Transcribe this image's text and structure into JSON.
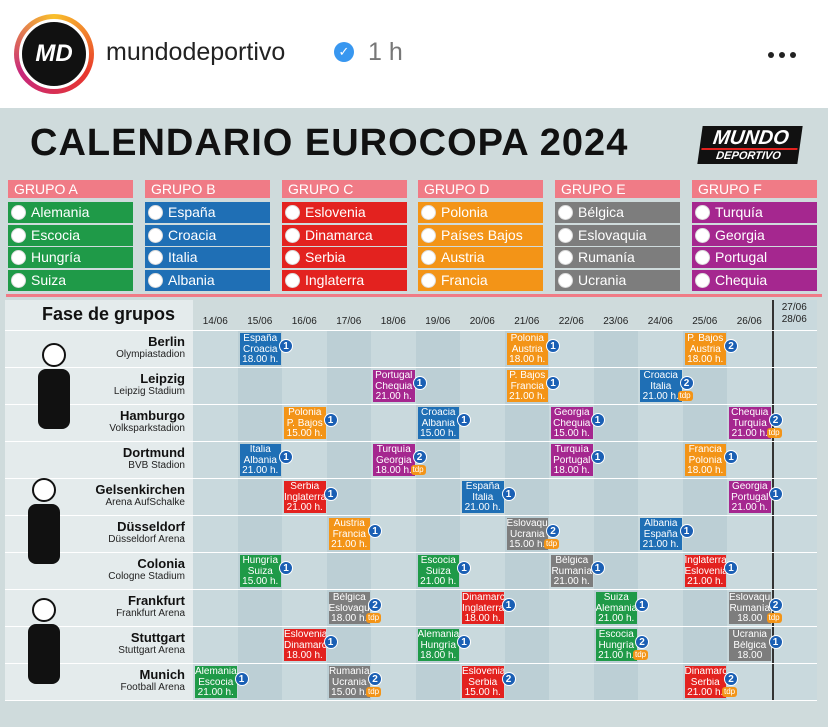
{
  "post": {
    "avatar": "MD",
    "username": "mundodeportivo",
    "time": "1 h"
  },
  "infographic": {
    "title": "CALENDARIO EUROCOPA 2024",
    "brand": [
      "MUNDO",
      "DEPORTIVO"
    ],
    "tdp_label": "tdp",
    "groups": [
      {
        "name": "GRUPO A",
        "color": "#1f9a48",
        "teams": [
          "Alemania",
          "Escocia",
          "Hungría",
          "Suiza"
        ]
      },
      {
        "name": "GRUPO B",
        "color": "#1f6fb5",
        "teams": [
          "España",
          "Croacia",
          "Italia",
          "Albania"
        ]
      },
      {
        "name": "GRUPO C",
        "color": "#e3221f",
        "teams": [
          "Eslovenia",
          "Dinamarca",
          "Serbia",
          "Inglaterra"
        ]
      },
      {
        "name": "GRUPO D",
        "color": "#f39417",
        "teams": [
          "Polonia",
          "Países Bajos",
          "Austria",
          "Francia"
        ]
      },
      {
        "name": "GRUPO E",
        "color": "#7d7d7d",
        "teams": [
          "Bélgica",
          "Eslovaquia",
          "Rumanía",
          "Ucrania"
        ]
      },
      {
        "name": "GRUPO F",
        "color": "#a5278f",
        "teams": [
          "Turquía",
          "Georgia",
          "Portugal",
          "Chequia"
        ]
      }
    ],
    "schedule": {
      "heading": "Fase de grupos",
      "dates": [
        "14/06",
        "15/06",
        "16/06",
        "17/06",
        "18/06",
        "19/06",
        "20/06",
        "21/06",
        "22/06",
        "23/06",
        "24/06",
        "25/06",
        "26/06"
      ],
      "last_dates": [
        "27/06",
        "28/06"
      ],
      "venues": [
        {
          "city": "Berlin",
          "stadium": "Olympiastadion",
          "matches": [
            {
              "date": "15/06",
              "teams": [
                "España",
                "Croacia"
              ],
              "time": "18.00 h.",
              "channel": 1,
              "tdp": false,
              "color": "#1f6fb5"
            },
            {
              "date": "21/06",
              "teams": [
                "Polonia",
                "Austria"
              ],
              "time": "18.00 h.",
              "channel": 1,
              "tdp": false,
              "color": "#f39417"
            },
            {
              "date": "25/06",
              "teams": [
                "P. Bajos",
                "Austria"
              ],
              "time": "18.00 h.",
              "channel": 2,
              "tdp": false,
              "color": "#f39417"
            }
          ]
        },
        {
          "city": "Leipzig",
          "stadium": "Leipzig Stadium",
          "matches": [
            {
              "date": "18/06",
              "teams": [
                "Portugal",
                "Chequia"
              ],
              "time": "21.00 h.",
              "channel": 1,
              "tdp": false,
              "color": "#a5278f"
            },
            {
              "date": "21/06",
              "teams": [
                "P. Bajos",
                "Francia"
              ],
              "time": "21.00 h.",
              "channel": 1,
              "tdp": false,
              "color": "#f39417"
            },
            {
              "date": "24/06",
              "teams": [
                "Croacia",
                "Italia"
              ],
              "time": "21.00 h.",
              "channel": 2,
              "tdp": true,
              "color": "#1f6fb5"
            }
          ]
        },
        {
          "city": "Hamburgo",
          "stadium": "Volksparkstadion",
          "matches": [
            {
              "date": "16/06",
              "teams": [
                "Polonia",
                "P. Bajos"
              ],
              "time": "15.00 h.",
              "channel": 1,
              "tdp": false,
              "color": "#f39417"
            },
            {
              "date": "19/06",
              "teams": [
                "Croacia",
                "Albania"
              ],
              "time": "15.00 h.",
              "channel": 1,
              "tdp": false,
              "color": "#1f6fb5"
            },
            {
              "date": "22/06",
              "teams": [
                "Georgia",
                "Chequia"
              ],
              "time": "15.00 h.",
              "channel": 1,
              "tdp": false,
              "color": "#a5278f"
            },
            {
              "date": "26/06",
              "teams": [
                "Chequia",
                "Turquía"
              ],
              "time": "21.00 h.",
              "channel": 2,
              "tdp": true,
              "color": "#a5278f"
            }
          ]
        },
        {
          "city": "Dortmund",
          "stadium": "BVB Stadion",
          "matches": [
            {
              "date": "15/06",
              "teams": [
                "Italia",
                "Albania"
              ],
              "time": "21.00 h.",
              "channel": 1,
              "tdp": false,
              "color": "#1f6fb5"
            },
            {
              "date": "18/06",
              "teams": [
                "Turquía",
                "Georgia"
              ],
              "time": "18.00 h.",
              "channel": 2,
              "tdp": true,
              "color": "#a5278f"
            },
            {
              "date": "22/06",
              "teams": [
                "Turquía",
                "Portugal"
              ],
              "time": "18.00 h.",
              "channel": 1,
              "tdp": false,
              "color": "#a5278f"
            },
            {
              "date": "25/06",
              "teams": [
                "Francia",
                "Polonia"
              ],
              "time": "18.00 h.",
              "channel": 1,
              "tdp": false,
              "color": "#f39417"
            }
          ]
        },
        {
          "city": "Gelsenkirchen",
          "stadium": "Arena AufSchalke",
          "matches": [
            {
              "date": "16/06",
              "teams": [
                "Serbia",
                "Inglaterra"
              ],
              "time": "21.00 h.",
              "channel": 1,
              "tdp": false,
              "color": "#e3221f"
            },
            {
              "date": "20/06",
              "teams": [
                "España",
                "Italia"
              ],
              "time": "21.00 h.",
              "channel": 1,
              "tdp": false,
              "color": "#1f6fb5"
            },
            {
              "date": "26/06",
              "teams": [
                "Georgia",
                "Portugal"
              ],
              "time": "21.00 h.",
              "channel": 1,
              "tdp": false,
              "color": "#a5278f"
            }
          ]
        },
        {
          "city": "Düsseldorf",
          "stadium": "Düsseldorf Arena",
          "matches": [
            {
              "date": "17/06",
              "teams": [
                "Austria",
                "Francia"
              ],
              "time": "21.00 h.",
              "channel": 1,
              "tdp": false,
              "color": "#f39417"
            },
            {
              "date": "21/06",
              "teams": [
                "Eslovaquia",
                "Ucrania"
              ],
              "time": "15.00 h.",
              "channel": 2,
              "tdp": true,
              "color": "#7d7d7d"
            },
            {
              "date": "24/06",
              "teams": [
                "Albania",
                "España"
              ],
              "time": "21.00 h.",
              "channel": 1,
              "tdp": false,
              "color": "#1f6fb5"
            }
          ]
        },
        {
          "city": "Colonia",
          "stadium": "Cologne Stadium",
          "matches": [
            {
              "date": "15/06",
              "teams": [
                "Hungría",
                "Suiza"
              ],
              "time": "15.00 h.",
              "channel": 1,
              "tdp": false,
              "color": "#1f9a48"
            },
            {
              "date": "19/06",
              "teams": [
                "Escocia",
                "Suiza"
              ],
              "time": "21.00 h.",
              "channel": 1,
              "tdp": false,
              "color": "#1f9a48"
            },
            {
              "date": "22/06",
              "teams": [
                "Bélgica",
                "Rumanía"
              ],
              "time": "21.00 h.",
              "channel": 1,
              "tdp": false,
              "color": "#7d7d7d"
            },
            {
              "date": "25/06",
              "teams": [
                "Inglaterra",
                "Eslovenia"
              ],
              "time": "21.00 h.",
              "channel": 1,
              "tdp": false,
              "color": "#e3221f"
            }
          ]
        },
        {
          "city": "Frankfurt",
          "stadium": "Frankfurt Arena",
          "matches": [
            {
              "date": "17/06",
              "teams": [
                "Bélgica",
                "Eslovaquia"
              ],
              "time": "18.00 h.",
              "channel": 2,
              "tdp": true,
              "color": "#7d7d7d"
            },
            {
              "date": "20/06",
              "teams": [
                "Dinamarca",
                "Inglaterra"
              ],
              "time": "18.00 h.",
              "channel": 1,
              "tdp": false,
              "color": "#e3221f"
            },
            {
              "date": "23/06",
              "teams": [
                "Suiza",
                "Alemania"
              ],
              "time": "21.00 h.",
              "channel": 1,
              "tdp": false,
              "color": "#1f9a48"
            },
            {
              "date": "26/06",
              "teams": [
                "Eslovaquia",
                "Rumanía"
              ],
              "time": "18.00",
              "channel": 2,
              "tdp": true,
              "color": "#7d7d7d"
            }
          ]
        },
        {
          "city": "Stuttgart",
          "stadium": "Stuttgart Arena",
          "matches": [
            {
              "date": "16/06",
              "teams": [
                "Eslovenia",
                "Dinamarca"
              ],
              "time": "18.00 h.",
              "channel": 1,
              "tdp": false,
              "color": "#e3221f"
            },
            {
              "date": "19/06",
              "teams": [
                "Alemania",
                "Hungría"
              ],
              "time": "18.00 h.",
              "channel": 1,
              "tdp": false,
              "color": "#1f9a48"
            },
            {
              "date": "23/06",
              "teams": [
                "Escocia",
                "Hungría"
              ],
              "time": "21.00 h.",
              "channel": 2,
              "tdp": true,
              "color": "#1f9a48"
            },
            {
              "date": "26/06",
              "teams": [
                "Ucrania",
                "Bélgica"
              ],
              "time": "18.00",
              "channel": 1,
              "tdp": false,
              "color": "#7d7d7d"
            }
          ]
        },
        {
          "city": "Munich",
          "stadium": "Football Arena",
          "matches": [
            {
              "date": "14/06",
              "teams": [
                "Alemania",
                "Escocia"
              ],
              "time": "21.00 h.",
              "channel": 1,
              "tdp": false,
              "color": "#1f9a48"
            },
            {
              "date": "17/06",
              "teams": [
                "Rumanía",
                "Ucrania"
              ],
              "time": "15.00 h.",
              "channel": 2,
              "tdp": true,
              "color": "#7d7d7d"
            },
            {
              "date": "20/06",
              "teams": [
                "Eslovenia",
                "Serbia"
              ],
              "time": "15.00 h.",
              "channel": 2,
              "tdp": false,
              "color": "#e3221f"
            },
            {
              "date": "25/06",
              "teams": [
                "Dinamarca",
                "Serbia"
              ],
              "time": "21.00 h.",
              "channel": 2,
              "tdp": true,
              "color": "#e3221f"
            }
          ]
        }
      ]
    }
  }
}
